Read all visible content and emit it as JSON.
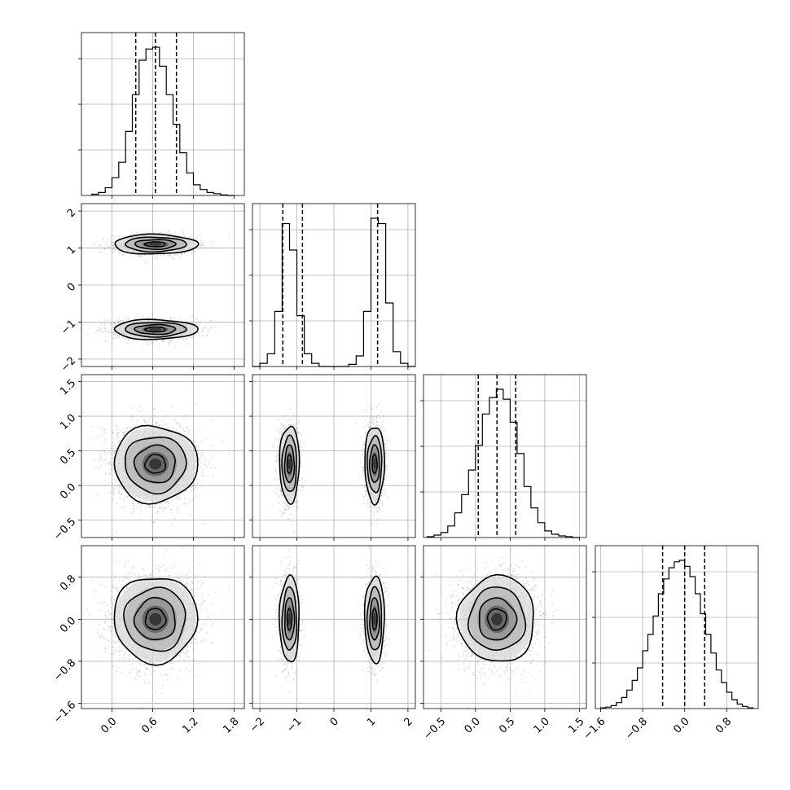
{
  "chart_data": {
    "type": "corner",
    "title": "",
    "grid": true,
    "n_params": 4,
    "params": [
      {
        "name": "",
        "range": [
          -0.45,
          1.95
        ],
        "ticks": [
          0.0,
          0.6,
          1.2,
          1.8
        ],
        "tick_labels": [
          "0.0",
          "0.6",
          "1.2",
          "1.8"
        ],
        "quantiles": [
          0.35,
          0.64,
          0.95
        ],
        "hist": {
          "bin_edges": [
            -0.3,
            -0.2,
            -0.1,
            0.0,
            0.1,
            0.2,
            0.3,
            0.4,
            0.5,
            0.6,
            0.7,
            0.8,
            0.9,
            1.0,
            1.1,
            1.2,
            1.3,
            1.4,
            1.5,
            1.6,
            1.7,
            1.8
          ],
          "counts": [
            2,
            5,
            13,
            30,
            56,
            108,
            170,
            228,
            247,
            250,
            218,
            170,
            120,
            72,
            38,
            18,
            10,
            5,
            3,
            1,
            0
          ]
        }
      },
      {
        "name": "",
        "range": [
          -2.2,
          2.2
        ],
        "ticks": [
          -2,
          -1,
          0,
          1,
          2
        ],
        "tick_labels": [
          "−2",
          "−1",
          "0",
          "1",
          "2"
        ],
        "quantiles": [
          -1.38,
          -0.85,
          1.18
        ],
        "hist": {
          "bin_edges": [
            -2.2,
            -2.0,
            -1.8,
            -1.6,
            -1.4,
            -1.2,
            -1.0,
            -0.8,
            -0.6,
            -0.4,
            -0.2,
            0.0,
            0.2,
            0.4,
            0.6,
            0.8,
            1.0,
            1.2,
            1.4,
            1.6,
            1.8,
            2.0,
            2.2
          ],
          "counts": [
            0,
            3,
            12,
            52,
            135,
            110,
            48,
            12,
            3,
            0,
            0,
            0,
            0,
            2,
            10,
            52,
            140,
            135,
            60,
            14,
            3,
            0
          ]
        }
      },
      {
        "name": "",
        "range": [
          -0.75,
          1.6
        ],
        "ticks": [
          -0.5,
          0.0,
          0.5,
          1.0,
          1.5
        ],
        "tick_labels": [
          "−0.5",
          "0.0",
          "0.5",
          "1.0",
          "1.5"
        ],
        "quantiles": [
          0.04,
          0.31,
          0.58
        ],
        "hist": {
          "bin_edges": [
            -0.7,
            -0.6,
            -0.5,
            -0.4,
            -0.3,
            -0.2,
            -0.1,
            0.0,
            0.1,
            0.2,
            0.3,
            0.4,
            0.5,
            0.6,
            0.7,
            0.8,
            0.9,
            1.0,
            1.1,
            1.2,
            1.3,
            1.4,
            1.5
          ],
          "counts": [
            1,
            3,
            6,
            14,
            30,
            52,
            82,
            112,
            150,
            170,
            180,
            168,
            140,
            102,
            62,
            36,
            18,
            8,
            4,
            2,
            1,
            0
          ]
        }
      },
      {
        "name": "",
        "range": [
          -1.7,
          1.4
        ],
        "ticks": [
          -1.6,
          -0.8,
          0.0,
          0.8
        ],
        "tick_labels": [
          "−1.6",
          "−0.8",
          "0.0",
          "0.8"
        ],
        "quantiles": [
          -0.42,
          0.0,
          0.38
        ],
        "hist": {
          "bin_edges": [
            -1.6,
            -1.5,
            -1.4,
            -1.3,
            -1.2,
            -1.1,
            -1.0,
            -0.9,
            -0.8,
            -0.7,
            -0.6,
            -0.5,
            -0.4,
            -0.3,
            -0.2,
            -0.1,
            0.0,
            0.1,
            0.2,
            0.3,
            0.4,
            0.5,
            0.6,
            0.7,
            0.8,
            0.9,
            1.0,
            1.1,
            1.2,
            1.3
          ],
          "counts": [
            1,
            2,
            4,
            8,
            15,
            25,
            38,
            55,
            78,
            100,
            125,
            155,
            175,
            190,
            198,
            200,
            192,
            178,
            155,
            128,
            100,
            75,
            52,
            35,
            22,
            12,
            6,
            3,
            1
          ]
        }
      }
    ],
    "clusters": [
      {
        "mean": [
          0.64,
          1.1,
          0.31,
          0.0
        ],
        "sd": [
          0.3,
          0.13,
          0.27,
          0.4
        ]
      },
      {
        "mean": [
          0.64,
          -1.2,
          0.31,
          0.0
        ],
        "sd": [
          0.3,
          0.13,
          0.27,
          0.4
        ]
      }
    ]
  }
}
